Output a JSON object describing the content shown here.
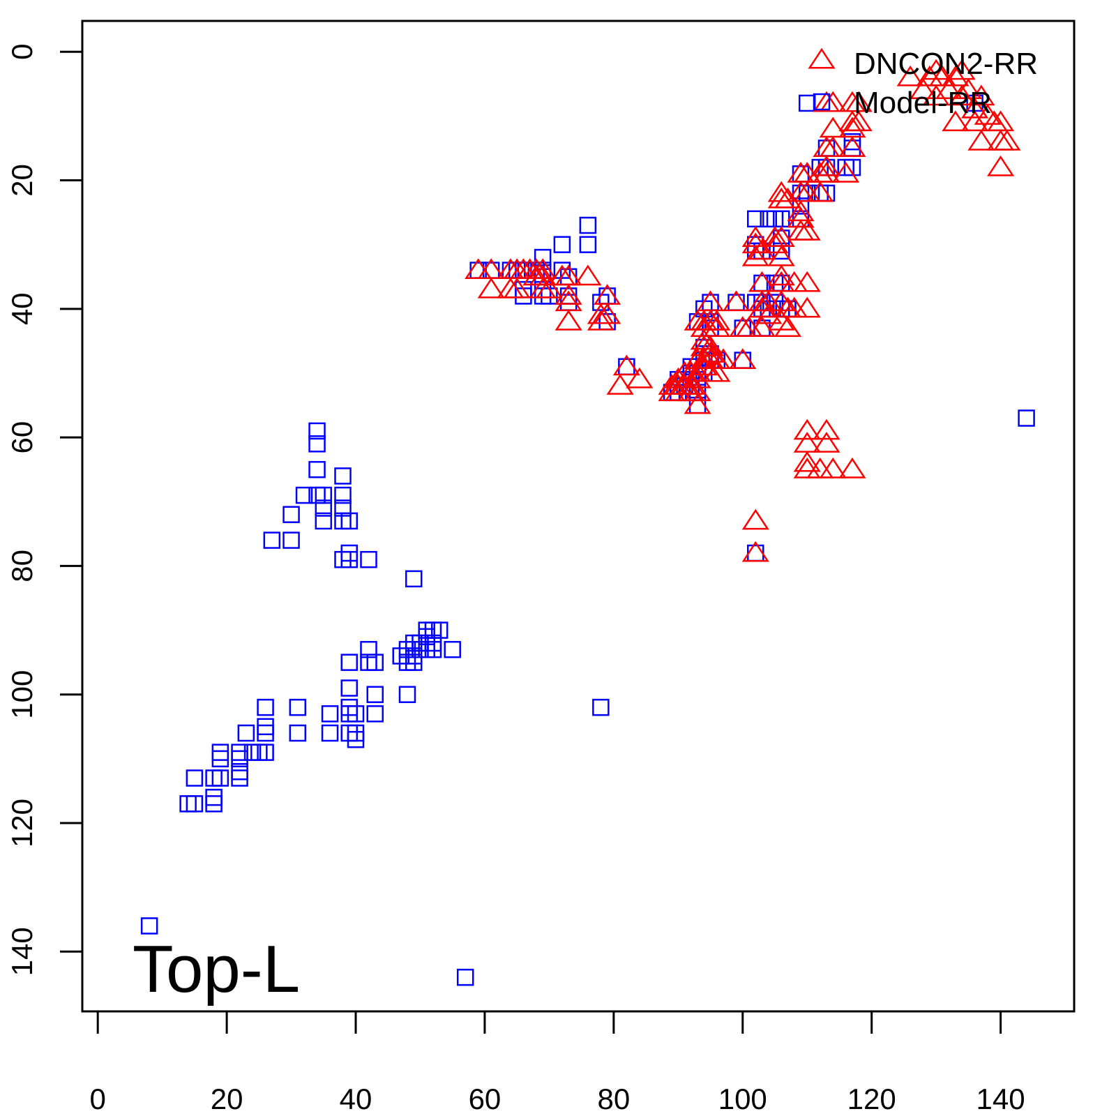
{
  "chart_data": {
    "type": "scatter",
    "title": "",
    "xlabel": "",
    "ylabel": "",
    "xlim": [
      -2.4,
      151.4
    ],
    "ylim": [
      -4.8,
      149.3
    ],
    "y_reversed": true,
    "x_ticks": [
      0,
      20,
      40,
      60,
      80,
      100,
      120,
      140
    ],
    "y_ticks": [
      0,
      20,
      40,
      60,
      80,
      100,
      120,
      140
    ],
    "grid": false,
    "legend": {
      "position": "top-right"
    },
    "annotation": "Top-L",
    "series": [
      {
        "name": "DNCON2-RR",
        "marker": "triangle",
        "color": "#ff0000",
        "points": [
          [
            126,
            4
          ],
          [
            128,
            6
          ],
          [
            129,
            4
          ],
          [
            130,
            3
          ],
          [
            130,
            7
          ],
          [
            131,
            4
          ],
          [
            132,
            6
          ],
          [
            133,
            4
          ],
          [
            133,
            11
          ],
          [
            134,
            3
          ],
          [
            134,
            7
          ],
          [
            135,
            6
          ],
          [
            136,
            9
          ],
          [
            136,
            11
          ],
          [
            137,
            7
          ],
          [
            137,
            14
          ],
          [
            138,
            10
          ],
          [
            139,
            11
          ],
          [
            140,
            11
          ],
          [
            140,
            14
          ],
          [
            140,
            18
          ],
          [
            141,
            14
          ],
          [
            113,
            8
          ],
          [
            114,
            8
          ],
          [
            117,
            8
          ],
          [
            117,
            11
          ],
          [
            118,
            8
          ],
          [
            118,
            11
          ],
          [
            114,
            12
          ],
          [
            114,
            15
          ],
          [
            113,
            15
          ],
          [
            113,
            18
          ],
          [
            113,
            19
          ],
          [
            117,
            12
          ],
          [
            117,
            15
          ],
          [
            116,
            19
          ],
          [
            109,
            19
          ],
          [
            110,
            19
          ],
          [
            110,
            22
          ],
          [
            109,
            22
          ],
          [
            112,
            19
          ],
          [
            112,
            22
          ],
          [
            106,
            22
          ],
          [
            106,
            23
          ],
          [
            107,
            23
          ],
          [
            109,
            25
          ],
          [
            109,
            26
          ],
          [
            109,
            28
          ],
          [
            110,
            28
          ],
          [
            102,
            29
          ],
          [
            102,
            30
          ],
          [
            102,
            32
          ],
          [
            103,
            31
          ],
          [
            105,
            29
          ],
          [
            105,
            30
          ],
          [
            106,
            29
          ],
          [
            106,
            32
          ],
          [
            103,
            36
          ],
          [
            106,
            35
          ],
          [
            106,
            36
          ],
          [
            108,
            36
          ],
          [
            110,
            36
          ],
          [
            103,
            39
          ],
          [
            104,
            39
          ],
          [
            106,
            39
          ],
          [
            107,
            40
          ],
          [
            108,
            40
          ],
          [
            110,
            40
          ],
          [
            103,
            40
          ],
          [
            104,
            41
          ],
          [
            99,
            39
          ],
          [
            100,
            43
          ],
          [
            101,
            43
          ],
          [
            103,
            43
          ],
          [
            106,
            42
          ],
          [
            107,
            43
          ],
          [
            95,
            39
          ],
          [
            95,
            42
          ],
          [
            96,
            42
          ],
          [
            96,
            43
          ],
          [
            94,
            42
          ],
          [
            94,
            43
          ],
          [
            93,
            42
          ],
          [
            94,
            45
          ],
          [
            94,
            46
          ],
          [
            95,
            46
          ],
          [
            95,
            48
          ],
          [
            96,
            48
          ],
          [
            94,
            48
          ],
          [
            93,
            48
          ],
          [
            95,
            50
          ],
          [
            96,
            50
          ],
          [
            97,
            48
          ],
          [
            93,
            50
          ],
          [
            93,
            51
          ],
          [
            92,
            50
          ],
          [
            92,
            52
          ],
          [
            91,
            50
          ],
          [
            91,
            52
          ],
          [
            90,
            51
          ],
          [
            90,
            52
          ],
          [
            89,
            52
          ],
          [
            89,
            53
          ],
          [
            90,
            53
          ],
          [
            92,
            53
          ],
          [
            93,
            53
          ],
          [
            93,
            55
          ],
          [
            94,
            49
          ],
          [
            95,
            47
          ],
          [
            100,
            48
          ],
          [
            59,
            34
          ],
          [
            61,
            34
          ],
          [
            61,
            37
          ],
          [
            64,
            34
          ],
          [
            64,
            37
          ],
          [
            65,
            34
          ],
          [
            65,
            37
          ],
          [
            66,
            34
          ],
          [
            67,
            34
          ],
          [
            68,
            34
          ],
          [
            68,
            35
          ],
          [
            69,
            34
          ],
          [
            69,
            35
          ],
          [
            69,
            37
          ],
          [
            70,
            37
          ],
          [
            72,
            35
          ],
          [
            73,
            35
          ],
          [
            73,
            38
          ],
          [
            73,
            39
          ],
          [
            73,
            42
          ],
          [
            76,
            35
          ],
          [
            79,
            38
          ],
          [
            78,
            41
          ],
          [
            79,
            41
          ],
          [
            78,
            42
          ],
          [
            82,
            49
          ],
          [
            81,
            52
          ],
          [
            84,
            51
          ],
          [
            110,
            59
          ],
          [
            113,
            59
          ],
          [
            110,
            61
          ],
          [
            113,
            61
          ],
          [
            110,
            64
          ],
          [
            110,
            65
          ],
          [
            112,
            65
          ],
          [
            114,
            65
          ],
          [
            117,
            65
          ],
          [
            102,
            73
          ],
          [
            102,
            78
          ]
        ]
      },
      {
        "name": "Model-RR",
        "marker": "square",
        "color": "#0000ff",
        "points": [
          [
            110,
            8
          ],
          [
            136,
            8
          ],
          [
            117,
            14
          ],
          [
            117,
            15
          ],
          [
            117,
            18
          ],
          [
            116,
            18
          ],
          [
            113,
            15
          ],
          [
            113,
            18
          ],
          [
            112,
            18
          ],
          [
            109,
            19
          ],
          [
            109,
            22
          ],
          [
            110,
            22
          ],
          [
            112,
            22
          ],
          [
            113,
            22
          ],
          [
            109,
            24
          ],
          [
            109,
            26
          ],
          [
            102,
            26
          ],
          [
            104,
            26
          ],
          [
            105,
            26
          ],
          [
            106,
            26
          ],
          [
            106,
            29
          ],
          [
            102,
            30
          ],
          [
            102,
            31
          ],
          [
            103,
            31
          ],
          [
            106,
            31
          ],
          [
            103,
            36
          ],
          [
            105,
            36
          ],
          [
            106,
            36
          ],
          [
            102,
            39
          ],
          [
            103,
            39
          ],
          [
            105,
            39
          ],
          [
            106,
            40
          ],
          [
            107,
            40
          ],
          [
            103,
            40
          ],
          [
            104,
            40
          ],
          [
            103,
            43
          ],
          [
            100,
            43
          ],
          [
            95,
            39
          ],
          [
            94,
            40
          ],
          [
            99,
            39
          ],
          [
            93,
            42
          ],
          [
            95,
            42
          ],
          [
            95,
            43
          ],
          [
            94,
            46
          ],
          [
            94,
            47
          ],
          [
            95,
            47
          ],
          [
            94,
            48
          ],
          [
            95,
            48
          ],
          [
            96,
            48
          ],
          [
            93,
            49
          ],
          [
            92,
            49
          ],
          [
            92,
            50
          ],
          [
            93,
            50
          ],
          [
            94,
            50
          ],
          [
            91,
            51
          ],
          [
            92,
            51
          ],
          [
            93,
            51
          ],
          [
            90,
            51
          ],
          [
            90,
            52
          ],
          [
            91,
            52
          ],
          [
            92,
            52
          ],
          [
            89,
            53
          ],
          [
            90,
            53
          ],
          [
            93,
            53
          ],
          [
            93,
            55
          ],
          [
            100,
            48
          ],
          [
            59,
            34
          ],
          [
            61,
            34
          ],
          [
            64,
            34
          ],
          [
            65,
            34
          ],
          [
            66,
            34
          ],
          [
            66,
            37
          ],
          [
            66,
            38
          ],
          [
            68,
            34
          ],
          [
            69,
            32
          ],
          [
            69,
            34
          ],
          [
            69,
            35
          ],
          [
            69,
            37
          ],
          [
            69,
            38
          ],
          [
            70,
            38
          ],
          [
            72,
            30
          ],
          [
            72,
            34
          ],
          [
            73,
            35
          ],
          [
            73,
            38
          ],
          [
            73,
            39
          ],
          [
            76,
            27
          ],
          [
            76,
            30
          ],
          [
            79,
            38
          ],
          [
            78,
            39
          ],
          [
            79,
            42
          ],
          [
            82,
            49
          ],
          [
            144,
            57
          ],
          [
            102,
            78
          ],
          [
            34,
            59
          ],
          [
            34,
            61
          ],
          [
            34,
            65
          ],
          [
            32,
            69
          ],
          [
            34,
            69
          ],
          [
            35,
            69
          ],
          [
            35,
            71
          ],
          [
            35,
            73
          ],
          [
            38,
            66
          ],
          [
            38,
            69
          ],
          [
            38,
            71
          ],
          [
            38,
            73
          ],
          [
            39,
            73
          ],
          [
            30,
            72
          ],
          [
            27,
            76
          ],
          [
            30,
            76
          ],
          [
            38,
            79
          ],
          [
            39,
            78
          ],
          [
            39,
            79
          ],
          [
            42,
            79
          ],
          [
            49,
            82
          ],
          [
            48,
            93
          ],
          [
            49,
            92
          ],
          [
            49,
            94
          ],
          [
            50,
            92
          ],
          [
            50,
            93
          ],
          [
            51,
            90
          ],
          [
            51,
            91
          ],
          [
            51,
            93
          ],
          [
            52,
            90
          ],
          [
            52,
            92
          ],
          [
            52,
            93
          ],
          [
            53,
            90
          ],
          [
            55,
            93
          ],
          [
            47,
            94
          ],
          [
            48,
            95
          ],
          [
            49,
            95
          ],
          [
            42,
            93
          ],
          [
            42,
            95
          ],
          [
            43,
            95
          ],
          [
            39,
            95
          ],
          [
            39,
            99
          ],
          [
            39,
            102
          ],
          [
            39,
            103
          ],
          [
            40,
            103
          ],
          [
            39,
            106
          ],
          [
            40,
            106
          ],
          [
            40,
            107
          ],
          [
            43,
            100
          ],
          [
            43,
            103
          ],
          [
            48,
            100
          ],
          [
            31,
            102
          ],
          [
            31,
            106
          ],
          [
            36,
            103
          ],
          [
            36,
            106
          ],
          [
            26,
            102
          ],
          [
            26,
            105
          ],
          [
            26,
            106
          ],
          [
            26,
            109
          ],
          [
            23,
            106
          ],
          [
            24,
            109
          ],
          [
            25,
            109
          ],
          [
            22,
            109
          ],
          [
            22,
            110
          ],
          [
            22,
            112
          ],
          [
            22,
            113
          ],
          [
            19,
            109
          ],
          [
            19,
            110
          ],
          [
            18,
            113
          ],
          [
            19,
            113
          ],
          [
            15,
            113
          ],
          [
            18,
            116
          ],
          [
            18,
            117
          ],
          [
            15,
            117
          ],
          [
            14,
            117
          ],
          [
            78,
            102
          ],
          [
            8,
            136
          ],
          [
            57,
            144
          ]
        ]
      }
    ]
  }
}
